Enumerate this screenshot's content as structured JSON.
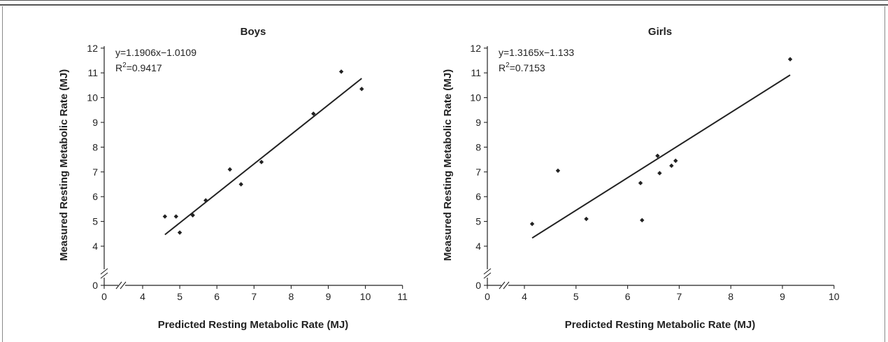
{
  "colors": {
    "ink": "#222222",
    "frame": "#8a8a8a"
  },
  "chart_data": [
    {
      "type": "scatter",
      "title": "Boys",
      "xlabel": "Predicted Resting Metabolic Rate (MJ)",
      "ylabel": "Measured Resting Metabolic Rate (MJ)",
      "xticks": [
        "0",
        "4",
        "5",
        "6",
        "7",
        "8",
        "9",
        "10",
        "11"
      ],
      "yticks": [
        "0",
        "4",
        "5",
        "6",
        "7",
        "8",
        "9",
        "10",
        "11",
        "12"
      ],
      "xlim": [
        3,
        11
      ],
      "ylim": [
        3,
        12
      ],
      "axis_break": true,
      "equation": "y=1.1906x−1.0109",
      "r2_label": "R",
      "r2_sup": "2",
      "r2_value": "=0.9417",
      "fit": {
        "slope": 1.1906,
        "intercept": -1.0109,
        "x_range": [
          4.6,
          9.9
        ]
      },
      "points": [
        {
          "x": 4.6,
          "y": 5.2
        },
        {
          "x": 4.9,
          "y": 5.2
        },
        {
          "x": 5.0,
          "y": 4.55
        },
        {
          "x": 5.35,
          "y": 5.25
        },
        {
          "x": 5.7,
          "y": 5.85
        },
        {
          "x": 6.35,
          "y": 7.1
        },
        {
          "x": 6.65,
          "y": 6.5
        },
        {
          "x": 7.2,
          "y": 7.4
        },
        {
          "x": 8.6,
          "y": 9.35
        },
        {
          "x": 9.35,
          "y": 11.05
        },
        {
          "x": 9.9,
          "y": 10.35
        }
      ]
    },
    {
      "type": "scatter",
      "title": "Girls",
      "xlabel": "Predicted Resting Metabolic Rate (MJ)",
      "ylabel": "Measured Resting Metabolic Rate (MJ)",
      "xticks": [
        "0",
        "4",
        "5",
        "6",
        "7",
        "8",
        "9",
        "10"
      ],
      "yticks": [
        "0",
        "4",
        "5",
        "6",
        "7",
        "8",
        "9",
        "10",
        "11",
        "12"
      ],
      "xlim": [
        3,
        10
      ],
      "ylim": [
        3,
        12
      ],
      "axis_break": true,
      "equation": "y=1.3165x−1.133",
      "r2_label": "R",
      "r2_sup": "2",
      "r2_value": "=0.7153",
      "fit": {
        "slope": 1.3165,
        "intercept": -1.133,
        "x_range": [
          4.15,
          9.15
        ]
      },
      "points": [
        {
          "x": 4.15,
          "y": 4.9
        },
        {
          "x": 4.65,
          "y": 7.05
        },
        {
          "x": 5.2,
          "y": 5.1
        },
        {
          "x": 6.25,
          "y": 6.55
        },
        {
          "x": 6.28,
          "y": 5.05
        },
        {
          "x": 6.58,
          "y": 7.65
        },
        {
          "x": 6.62,
          "y": 6.95
        },
        {
          "x": 6.85,
          "y": 7.25
        },
        {
          "x": 6.93,
          "y": 7.45
        },
        {
          "x": 9.15,
          "y": 11.55
        }
      ]
    }
  ]
}
